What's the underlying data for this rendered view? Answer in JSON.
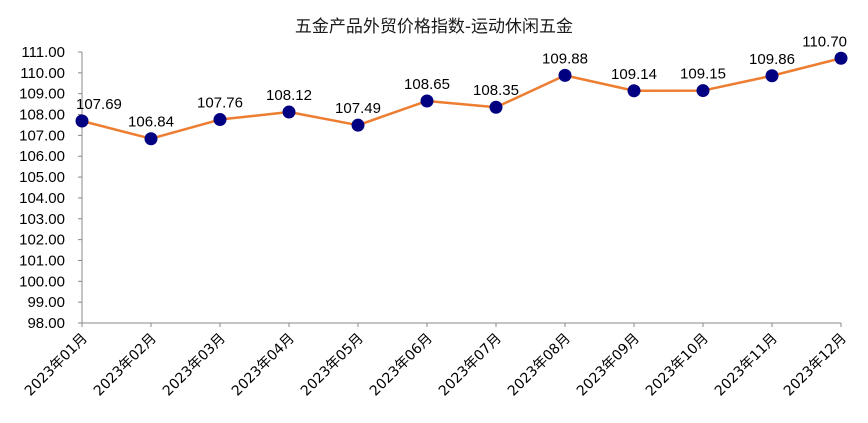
{
  "chart_data": {
    "type": "line",
    "title": "五金产品外贸价格指数-运动休闲五金",
    "xlabel": "",
    "ylabel": "",
    "categories": [
      "2023年01月",
      "2023年02月",
      "2023年03月",
      "2023年04月",
      "2023年05月",
      "2023年06月",
      "2023年07月",
      "2023年08月",
      "2023年09月",
      "2023年10月",
      "2023年11月",
      "2023年12月"
    ],
    "series": [
      {
        "values": [
          107.69,
          106.84,
          107.76,
          108.12,
          107.49,
          108.65,
          108.35,
          109.88,
          109.14,
          109.15,
          109.86,
          110.7
        ],
        "labels": [
          "107.69",
          "106.84",
          "107.76",
          "108.12",
          "107.49",
          "108.65",
          "108.35",
          "109.88",
          "109.14",
          "109.15",
          "109.86",
          "110.70"
        ]
      }
    ],
    "ylim": [
      98,
      111
    ],
    "yticks": [
      "98.00",
      "99.00",
      "100.00",
      "101.00",
      "102.00",
      "103.00",
      "104.00",
      "105.00",
      "106.00",
      "107.00",
      "108.00",
      "109.00",
      "110.00",
      "111.00"
    ],
    "grid": false,
    "legend": "none",
    "line_color": "#ED7D31",
    "marker_color": "#000080"
  }
}
